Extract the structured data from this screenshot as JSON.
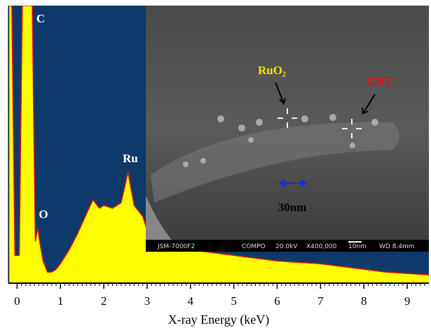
{
  "chart_data": {
    "type": "area",
    "x_label": "X-ray Energy  (keV)",
    "x": [
      -0.18,
      -0.12,
      -0.05,
      0.05,
      0.12,
      0.35,
      0.42,
      0.48,
      0.52,
      0.6,
      0.7,
      0.8,
      0.9,
      1.0,
      1.2,
      1.4,
      1.6,
      1.75,
      1.9,
      2.0,
      2.2,
      2.4,
      2.56,
      2.7,
      2.9,
      3.0,
      3.5,
      4.0,
      4.5,
      5.0,
      5.5,
      6.0,
      6.5,
      7.0,
      7.5,
      8.0,
      8.5,
      9.0,
      9.5
    ],
    "series": [
      {
        "color": "#ffff00",
        "line_color": "#e01010",
        "values": [
          100,
          100,
          10,
          10,
          100,
          100,
          15,
          20,
          15,
          8,
          4,
          4,
          5,
          7,
          12,
          18,
          25,
          30,
          27,
          28,
          27,
          29,
          40,
          28,
          24,
          19,
          15,
          12,
          11,
          10,
          9,
          8,
          7.5,
          7,
          6,
          5,
          4,
          3.5,
          3
        ]
      }
    ],
    "xlim": [
      -0.2,
      9.5
    ],
    "ylim": [
      0,
      100
    ],
    "xticks": [
      0,
      1,
      2,
      3,
      4,
      5,
      6,
      7,
      8,
      9
    ],
    "background": "#0d3a6b",
    "annotations": [
      "C",
      "O",
      "Ru"
    ],
    "inset": {
      "labels": [
        "RuO₂",
        "CNT",
        "30nm"
      ],
      "status": [
        "JSM-7000F2",
        "COMPO",
        "20.0kV",
        "X400,000",
        "10nm",
        "WD 8.4mm"
      ]
    }
  }
}
